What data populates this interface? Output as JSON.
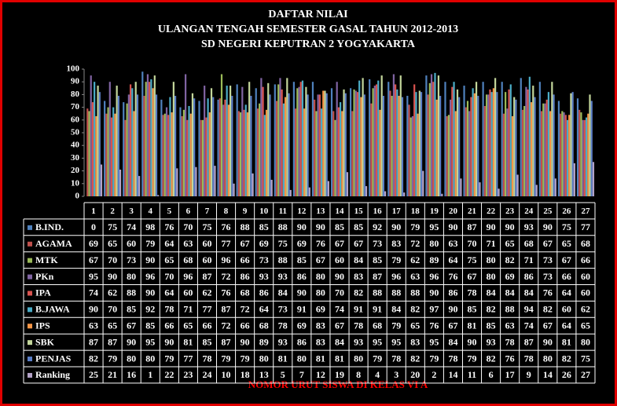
{
  "chart_data": {
    "type": "bar",
    "title": "DAFTAR NILAI",
    "subtitle": [
      "ULANGAN TENGAH SEMESTER GASAL TAHUN 2012-2013",
      "SD NEGERI KEPUTRAN 2 YOGYAKARTA"
    ],
    "xlabel": "NOMOR URUT SISWA DI KELAS  VI A",
    "categories": [
      "1",
      "2",
      "3",
      "4",
      "5",
      "6",
      "7",
      "8",
      "9",
      "10",
      "11",
      "12",
      "13",
      "14",
      "15",
      "16",
      "17",
      "18",
      "19",
      "20",
      "21",
      "22",
      "23",
      "24",
      "25",
      "26",
      "27"
    ],
    "ylim": [
      0,
      100
    ],
    "yticks": [
      0,
      10,
      20,
      30,
      40,
      50,
      60,
      70,
      80,
      90,
      100
    ],
    "grid": false,
    "series": [
      {
        "name": "B.IND.",
        "color": "#4f81bd",
        "values": [
          0,
          75,
          74,
          98,
          76,
          70,
          75,
          76,
          88,
          85,
          88,
          90,
          90,
          85,
          85,
          92,
          90,
          79,
          95,
          90,
          87,
          90,
          90,
          93,
          90,
          75,
          77
        ]
      },
      {
        "name": "AGAMA",
        "color": "#c0504d",
        "values": [
          69,
          65,
          60,
          79,
          64,
          63,
          60,
          77,
          67,
          69,
          75,
          69,
          76,
          67,
          67,
          73,
          83,
          72,
          80,
          63,
          70,
          71,
          65,
          68,
          67,
          65,
          68
        ]
      },
      {
        "name": "MTK",
        "color": "#9bbb59",
        "values": [
          67,
          70,
          73,
          90,
          65,
          68,
          60,
          96,
          66,
          73,
          88,
          85,
          67,
          60,
          84,
          85,
          79,
          62,
          89,
          64,
          75,
          80,
          82,
          71,
          73,
          67,
          66
        ]
      },
      {
        "name": "PKn",
        "color": "#8064a2",
        "values": [
          95,
          90,
          80,
          96,
          70,
          96,
          87,
          72,
          86,
          93,
          93,
          86,
          80,
          90,
          83,
          87,
          96,
          63,
          96,
          76,
          67,
          80,
          69,
          86,
          73,
          66,
          60
        ]
      },
      {
        "name": "IPA",
        "color": "#d9534f",
        "values": [
          74,
          62,
          88,
          90,
          64,
          60,
          62,
          76,
          68,
          86,
          84,
          90,
          80,
          70,
          82,
          88,
          88,
          88,
          90,
          86,
          78,
          84,
          84,
          84,
          76,
          64,
          60
        ]
      },
      {
        "name": "B.JAWA",
        "color": "#4bacc6",
        "values": [
          90,
          70,
          85,
          92,
          78,
          71,
          77,
          87,
          72,
          64,
          73,
          91,
          69,
          74,
          91,
          91,
          84,
          82,
          97,
          90,
          85,
          82,
          88,
          94,
          82,
          60,
          62
        ]
      },
      {
        "name": "IPS",
        "color": "#f79646",
        "values": [
          63,
          65,
          67,
          85,
          66,
          65,
          66,
          72,
          66,
          68,
          78,
          69,
          83,
          67,
          78,
          68,
          79,
          65,
          76,
          67,
          81,
          85,
          63,
          74,
          67,
          64,
          65
        ]
      },
      {
        "name": "SBK",
        "color": "#c3d69b",
        "values": [
          87,
          87,
          90,
          95,
          90,
          81,
          85,
          87,
          90,
          89,
          93,
          86,
          83,
          84,
          93,
          95,
          95,
          83,
          95,
          84,
          90,
          93,
          78,
          87,
          90,
          81,
          80
        ]
      },
      {
        "name": "PENJAS",
        "color": "#5b7fc7",
        "values": [
          82,
          79,
          80,
          80,
          79,
          77,
          78,
          79,
          79,
          80,
          81,
          80,
          81,
          81,
          80,
          79,
          78,
          82,
          79,
          78,
          79,
          82,
          76,
          78,
          80,
          82,
          75
        ]
      },
      {
        "name": "Ranking",
        "color": "#b3a2c7",
        "values": [
          25,
          21,
          16,
          1,
          22,
          23,
          24,
          10,
          18,
          13,
          5,
          7,
          12,
          19,
          8,
          4,
          3,
          20,
          2,
          14,
          11,
          6,
          17,
          9,
          14,
          26,
          27
        ]
      }
    ]
  }
}
